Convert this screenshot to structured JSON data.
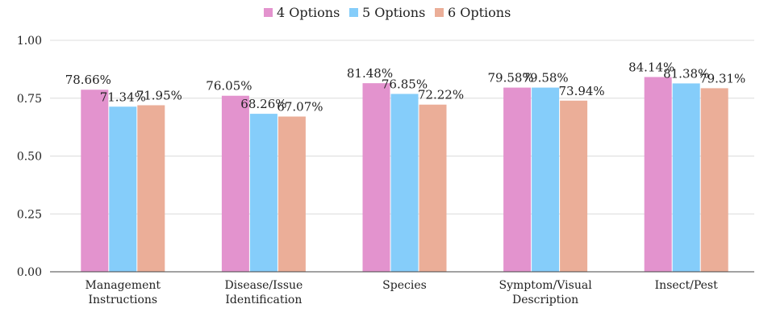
{
  "chart_data": {
    "type": "bar",
    "title": "",
    "xlabel": "",
    "ylabel": "",
    "ylim": [
      0,
      1.0
    ],
    "yticks": [
      "0.00",
      "0.25",
      "0.50",
      "0.75",
      "1.00"
    ],
    "ytick_values": [
      0,
      0.25,
      0.5,
      0.75,
      1.0
    ],
    "grid": true,
    "legend_position": "top-center",
    "categories": [
      [
        "Management",
        "Instructions"
      ],
      [
        "Disease/Issue",
        "Identification"
      ],
      [
        "Species"
      ],
      [
        "Symptom/Visual",
        "Description"
      ],
      [
        "Insect/Pest"
      ]
    ],
    "series": [
      {
        "name": "4 Options",
        "color": "#e393ce",
        "values": [
          0.7866,
          0.7605,
          0.8148,
          0.7958,
          0.8414
        ],
        "labels": [
          "78.66%",
          "76.05%",
          "81.48%",
          "79.58%",
          "84.14%"
        ]
      },
      {
        "name": "5 Options",
        "color": "#85cdfa",
        "values": [
          0.7134,
          0.6826,
          0.7685,
          0.7958,
          0.8138
        ],
        "labels": [
          "71.34%",
          "68.26%",
          "76.85%",
          "79.58%",
          "81.38%"
        ]
      },
      {
        "name": "6 Options",
        "color": "#ebae98",
        "values": [
          0.7195,
          0.6707,
          0.7222,
          0.7394,
          0.7931
        ],
        "labels": [
          "71.95%",
          "67.07%",
          "72.22%",
          "73.94%",
          "79.31%"
        ]
      }
    ]
  }
}
